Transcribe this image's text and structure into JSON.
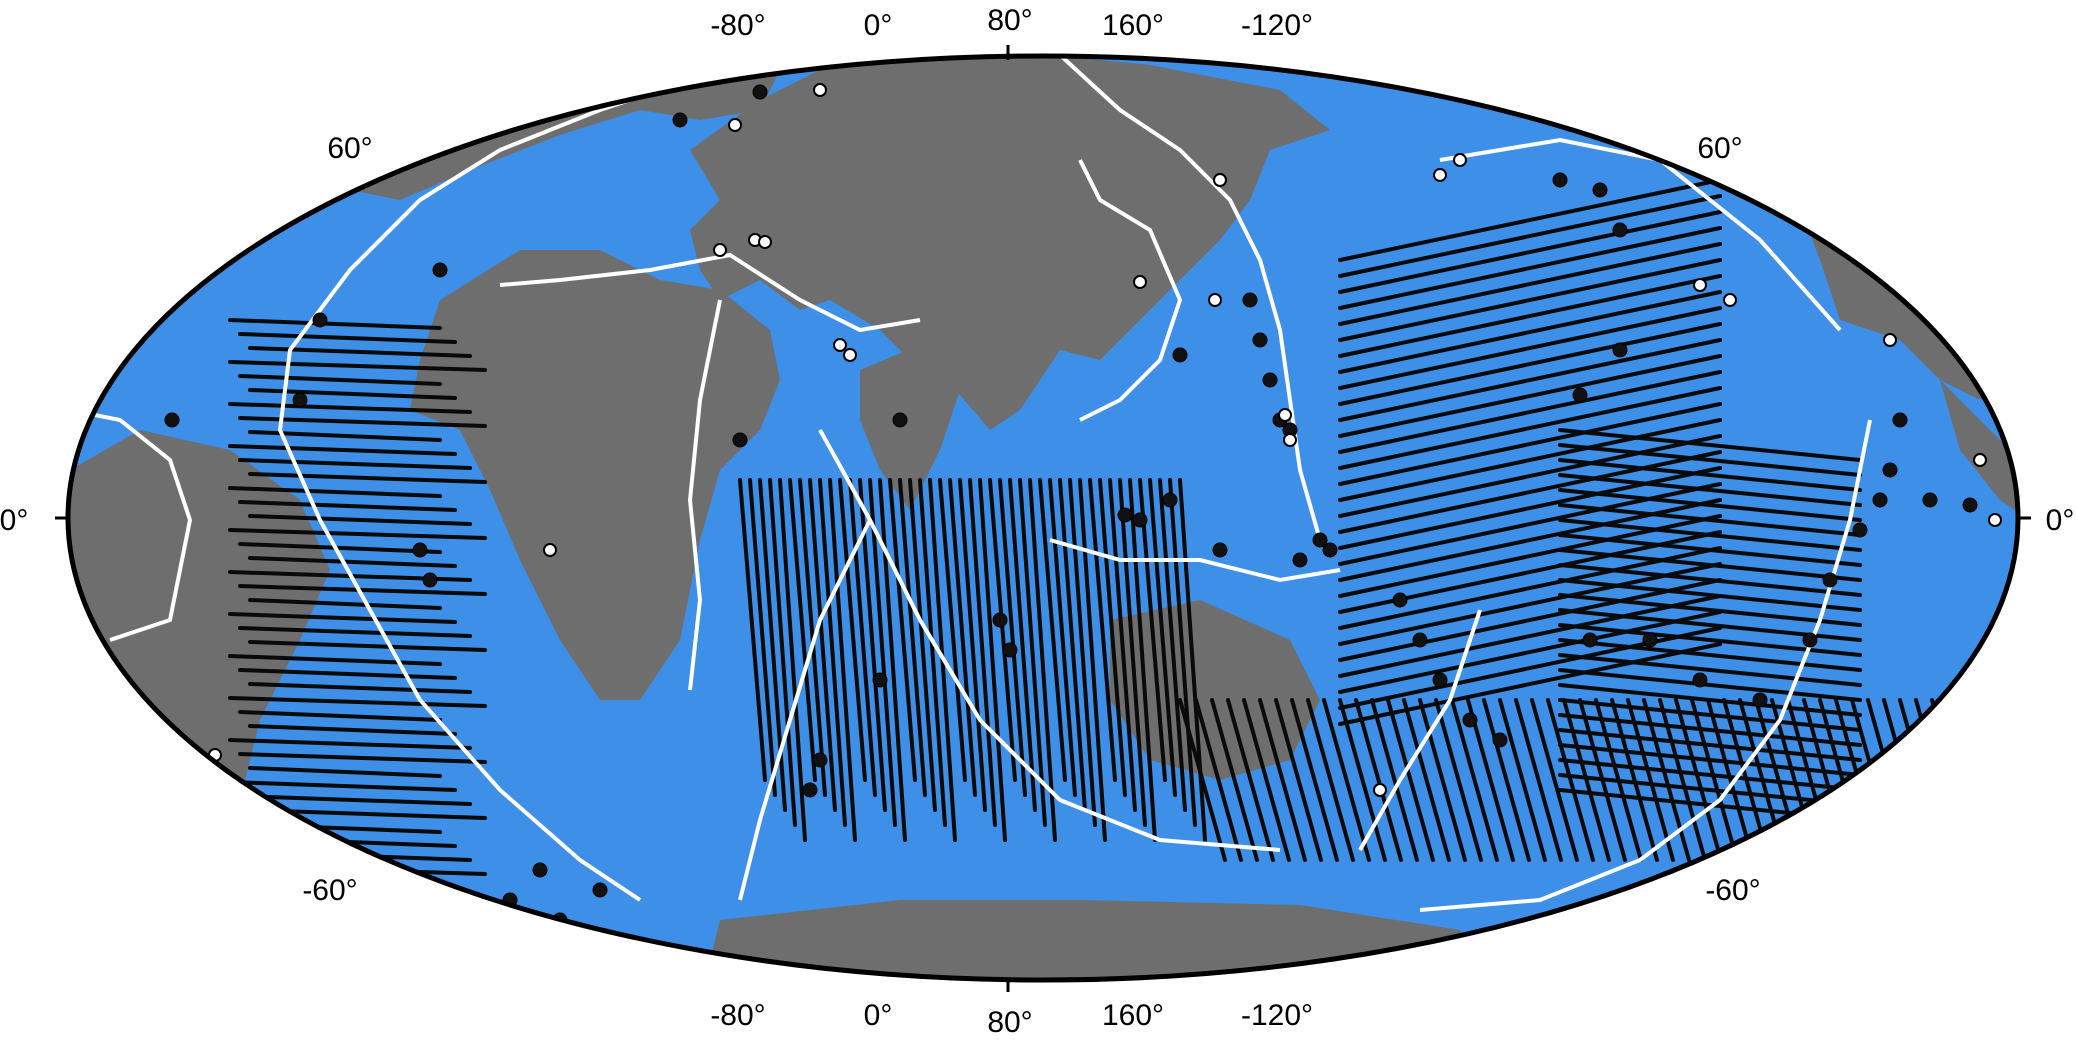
{
  "map": {
    "projection": "Mollweide",
    "colors": {
      "ocean": "#3d8fe8",
      "land": "#6e6e6e",
      "plate_boundary": "#ffffff",
      "fracture_zone": "#0a0a0a",
      "marker_fill_black": "#111111",
      "marker_fill_white": "#ffffff",
      "frame": "#000000"
    },
    "axis_labels": {
      "top": [
        "-80°",
        "0°",
        "80°",
        "160°",
        "-120°"
      ],
      "bottom": [
        "-80°",
        "0°",
        "80°",
        "160°",
        "-120°"
      ],
      "left": [
        "60°",
        "0°",
        "-60°"
      ],
      "right": [
        "60°",
        "0°",
        "-60°"
      ]
    },
    "layers": [
      "ocean-bathymetry",
      "land",
      "plate-boundaries",
      "fracture-zones",
      "black-point-markers",
      "white-point-markers"
    ]
  }
}
